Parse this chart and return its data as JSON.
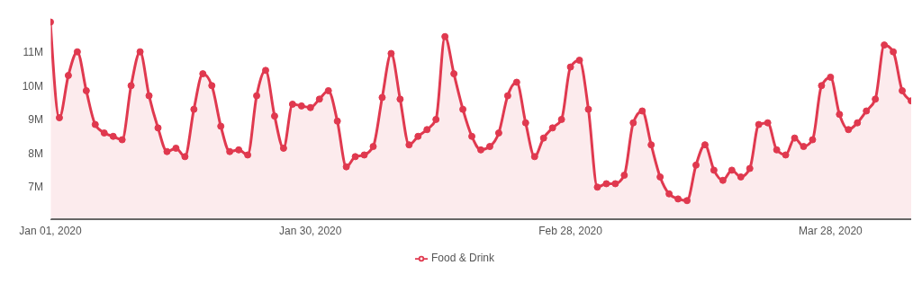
{
  "chart_data": {
    "type": "area",
    "x": [
      "2020-01-01",
      "2020-01-02",
      "2020-01-03",
      "2020-01-04",
      "2020-01-05",
      "2020-01-06",
      "2020-01-07",
      "2020-01-08",
      "2020-01-09",
      "2020-01-10",
      "2020-01-11",
      "2020-01-12",
      "2020-01-13",
      "2020-01-14",
      "2020-01-15",
      "2020-01-16",
      "2020-01-17",
      "2020-01-18",
      "2020-01-19",
      "2020-01-20",
      "2020-01-21",
      "2020-01-22",
      "2020-01-23",
      "2020-01-24",
      "2020-01-25",
      "2020-01-26",
      "2020-01-27",
      "2020-01-28",
      "2020-01-29",
      "2020-01-30",
      "2020-01-31",
      "2020-02-01",
      "2020-02-02",
      "2020-02-03",
      "2020-02-04",
      "2020-02-05",
      "2020-02-06",
      "2020-02-07",
      "2020-02-08",
      "2020-02-09",
      "2020-02-10",
      "2020-02-11",
      "2020-02-12",
      "2020-02-13",
      "2020-02-14",
      "2020-02-15",
      "2020-02-16",
      "2020-02-17",
      "2020-02-18",
      "2020-02-19",
      "2020-02-20",
      "2020-02-21",
      "2020-02-22",
      "2020-02-23",
      "2020-02-24",
      "2020-02-25",
      "2020-02-26",
      "2020-02-27",
      "2020-02-28",
      "2020-02-29",
      "2020-03-01",
      "2020-03-02",
      "2020-03-03",
      "2020-03-04",
      "2020-03-05",
      "2020-03-06",
      "2020-03-07",
      "2020-03-08",
      "2020-03-09",
      "2020-03-10",
      "2020-03-11",
      "2020-03-12",
      "2020-03-13",
      "2020-03-14",
      "2020-03-15",
      "2020-03-16",
      "2020-03-17",
      "2020-03-18",
      "2020-03-19",
      "2020-03-20",
      "2020-03-21",
      "2020-03-22",
      "2020-03-23",
      "2020-03-24",
      "2020-03-25",
      "2020-03-26",
      "2020-03-27",
      "2020-03-28",
      "2020-03-29",
      "2020-03-30",
      "2020-03-31",
      "2020-04-01",
      "2020-04-02",
      "2020-04-03",
      "2020-04-04",
      "2020-04-05",
      "2020-04-06"
    ],
    "series": [
      {
        "name": "Food & Drink",
        "color": "#e0394f",
        "values": [
          11.88,
          9.05,
          10.3,
          11.0,
          9.85,
          8.85,
          8.6,
          8.5,
          8.4,
          10.0,
          11.0,
          9.7,
          8.75,
          8.05,
          8.15,
          7.9,
          9.3,
          10.35,
          10.0,
          8.8,
          8.05,
          8.1,
          7.95,
          9.7,
          10.45,
          9.1,
          8.15,
          9.45,
          9.4,
          9.35,
          9.6,
          9.85,
          8.95,
          7.6,
          7.9,
          7.95,
          8.2,
          9.65,
          10.95,
          9.6,
          8.25,
          8.5,
          8.7,
          9.0,
          11.45,
          10.35,
          9.3,
          8.5,
          8.1,
          8.2,
          8.6,
          9.7,
          10.1,
          8.9,
          7.9,
          8.45,
          8.75,
          9.0,
          10.55,
          10.75,
          9.3,
          7.0,
          7.1,
          7.1,
          7.35,
          8.9,
          9.25,
          8.25,
          7.3,
          6.8,
          6.65,
          6.6,
          7.65,
          8.25,
          7.5,
          7.2,
          7.5,
          7.3,
          7.55,
          8.85,
          8.9,
          8.1,
          7.95,
          8.45,
          8.2,
          8.4,
          10.0,
          10.25,
          9.15,
          8.7,
          8.9,
          9.25,
          9.6,
          11.2,
          11.0,
          9.85,
          9.55
        ]
      }
    ],
    "xlim": [
      "2020-01-01",
      "2020-04-06"
    ],
    "xticks": [
      {
        "value": "2020-01-01",
        "label": "Jan 01, 2020"
      },
      {
        "value": "2020-01-30",
        "label": "Jan 30, 2020"
      },
      {
        "value": "2020-02-28",
        "label": "Feb 28, 2020"
      },
      {
        "value": "2020-03-28",
        "label": "Mar 28, 2020"
      }
    ],
    "ylim": [
      6.05,
      12
    ],
    "yticks": [
      {
        "value": 7,
        "label": "7M"
      },
      {
        "value": 8,
        "label": "8M"
      },
      {
        "value": 9,
        "label": "9M"
      },
      {
        "value": 10,
        "label": "10M"
      },
      {
        "value": 11,
        "label": "11M"
      }
    ],
    "legend": "bottom",
    "marker": "circle",
    "line_style": "solid"
  }
}
